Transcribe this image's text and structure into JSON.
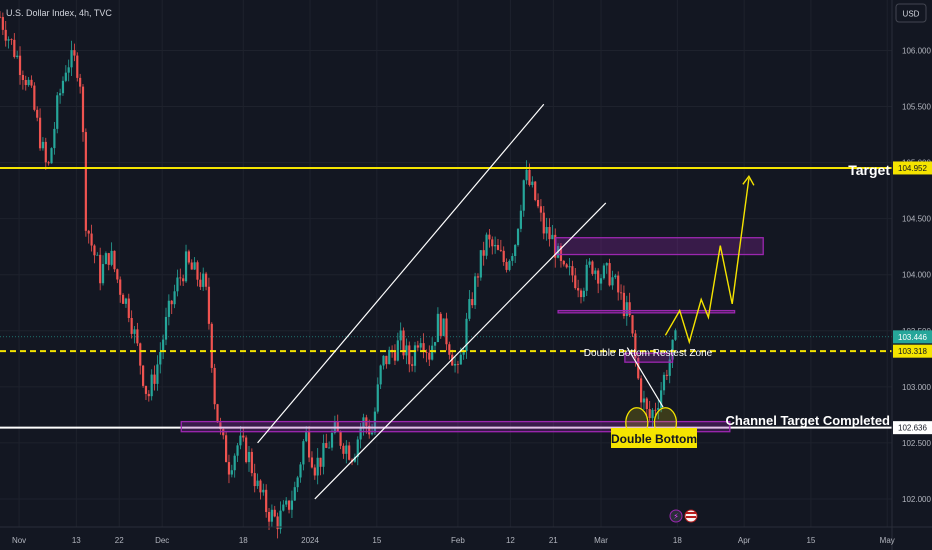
{
  "chart_data": {
    "type": "candlestick",
    "title": "U.S. Dollar Index, 4h, TVC",
    "currency": "USD",
    "y_ticks": [
      102.0,
      102.5,
      103.0,
      103.5,
      104.0,
      104.5,
      105.0,
      105.5,
      106.0
    ],
    "y_tick_labels": [
      "102.000",
      "102.500",
      "103.000",
      "103.500",
      "104.000",
      "104.500",
      "105.000",
      "105.500",
      "106.000"
    ],
    "ylim": [
      101.75,
      106.45
    ],
    "x_tick_labels": [
      "Nov",
      "13",
      "22",
      "Dec",
      "18",
      "2024",
      "15",
      "Feb",
      "12",
      "21",
      "Mar",
      "18",
      "Apr",
      "15",
      "May"
    ],
    "x_tick_days": [
      0,
      12,
      21,
      30,
      47,
      61,
      75,
      92,
      103,
      112,
      122,
      138,
      152,
      166,
      182
    ],
    "xlim_days": [
      -4,
      183
    ],
    "series_close": [
      {
        "day": -4,
        "close": 106.3
      },
      {
        "day": -1,
        "close": 106.0
      },
      {
        "day": 2,
        "close": 105.7
      },
      {
        "day": 4,
        "close": 105.3
      },
      {
        "day": 6,
        "close": 104.9
      },
      {
        "day": 8,
        "close": 105.5
      },
      {
        "day": 10,
        "close": 105.9
      },
      {
        "day": 12,
        "close": 105.9
      },
      {
        "day": 13,
        "close": 105.7
      },
      {
        "day": 14,
        "close": 104.5
      },
      {
        "day": 15,
        "close": 104.3
      },
      {
        "day": 17,
        "close": 104.0
      },
      {
        "day": 19,
        "close": 104.2
      },
      {
        "day": 21,
        "close": 103.9
      },
      {
        "day": 23,
        "close": 103.7
      },
      {
        "day": 25,
        "close": 103.3
      },
      {
        "day": 27,
        "close": 102.9
      },
      {
        "day": 29,
        "close": 103.2
      },
      {
        "day": 31,
        "close": 103.6
      },
      {
        "day": 33,
        "close": 103.9
      },
      {
        "day": 35,
        "close": 104.1
      },
      {
        "day": 37,
        "close": 104.0
      },
      {
        "day": 39,
        "close": 103.9
      },
      {
        "day": 40,
        "close": 103.5
      },
      {
        "day": 41,
        "close": 102.9
      },
      {
        "day": 42,
        "close": 102.6
      },
      {
        "day": 44,
        "close": 102.3
      },
      {
        "day": 46,
        "close": 102.5
      },
      {
        "day": 48,
        "close": 102.4
      },
      {
        "day": 50,
        "close": 102.1
      },
      {
        "day": 52,
        "close": 101.9
      },
      {
        "day": 54,
        "close": 101.8
      },
      {
        "day": 56,
        "close": 101.9
      },
      {
        "day": 58,
        "close": 102.1
      },
      {
        "day": 60,
        "close": 102.6
      },
      {
        "day": 62,
        "close": 102.3
      },
      {
        "day": 64,
        "close": 102.4
      },
      {
        "day": 66,
        "close": 102.6
      },
      {
        "day": 68,
        "close": 102.5
      },
      {
        "day": 70,
        "close": 102.4
      },
      {
        "day": 72,
        "close": 102.7
      },
      {
        "day": 74,
        "close": 102.6
      },
      {
        "day": 76,
        "close": 103.2
      },
      {
        "day": 78,
        "close": 103.3
      },
      {
        "day": 80,
        "close": 103.4
      },
      {
        "day": 82,
        "close": 103.2
      },
      {
        "day": 84,
        "close": 103.5
      },
      {
        "day": 86,
        "close": 103.3
      },
      {
        "day": 88,
        "close": 103.6
      },
      {
        "day": 90,
        "close": 103.4
      },
      {
        "day": 92,
        "close": 103.1
      },
      {
        "day": 94,
        "close": 103.6
      },
      {
        "day": 96,
        "close": 104.0
      },
      {
        "day": 98,
        "close": 104.3
      },
      {
        "day": 100,
        "close": 104.2
      },
      {
        "day": 102,
        "close": 104.1
      },
      {
        "day": 104,
        "close": 104.3
      },
      {
        "day": 106,
        "close": 104.9
      },
      {
        "day": 108,
        "close": 104.7
      },
      {
        "day": 110,
        "close": 104.4
      },
      {
        "day": 112,
        "close": 104.3
      },
      {
        "day": 114,
        "close": 104.0
      },
      {
        "day": 116,
        "close": 104.0
      },
      {
        "day": 118,
        "close": 103.9
      },
      {
        "day": 120,
        "close": 104.1
      },
      {
        "day": 122,
        "close": 104.0
      },
      {
        "day": 124,
        "close": 104.0
      },
      {
        "day": 126,
        "close": 103.8
      },
      {
        "day": 128,
        "close": 103.6
      },
      {
        "day": 130,
        "close": 103.0
      },
      {
        "day": 132,
        "close": 102.7
      },
      {
        "day": 134,
        "close": 102.9
      },
      {
        "day": 136,
        "close": 103.2
      },
      {
        "day": 138,
        "close": 103.45
      }
    ],
    "levels": [
      {
        "price": 104.952,
        "label": "104.952",
        "color": "#f5e400",
        "style": "solid"
      },
      {
        "price": 103.446,
        "label": "103.446",
        "color": "#26a69a",
        "style": "price"
      },
      {
        "price": 103.318,
        "label": "103.318",
        "color": "#f5e400",
        "style": "dashed"
      },
      {
        "price": 102.636,
        "label": "102.636",
        "color": "#ffffff",
        "style": "solid"
      }
    ],
    "annotations": {
      "target": "Target",
      "channel_target": "Channel Target Completed",
      "double_bottom": "Double Bottom",
      "retest_zone": "Double Bottom Restest Zone"
    },
    "colors": {
      "up": "#26a69a",
      "down": "#ef5350",
      "zone": "#9c27b0",
      "projection": "#f5e400",
      "channel": "#ffffff"
    }
  }
}
